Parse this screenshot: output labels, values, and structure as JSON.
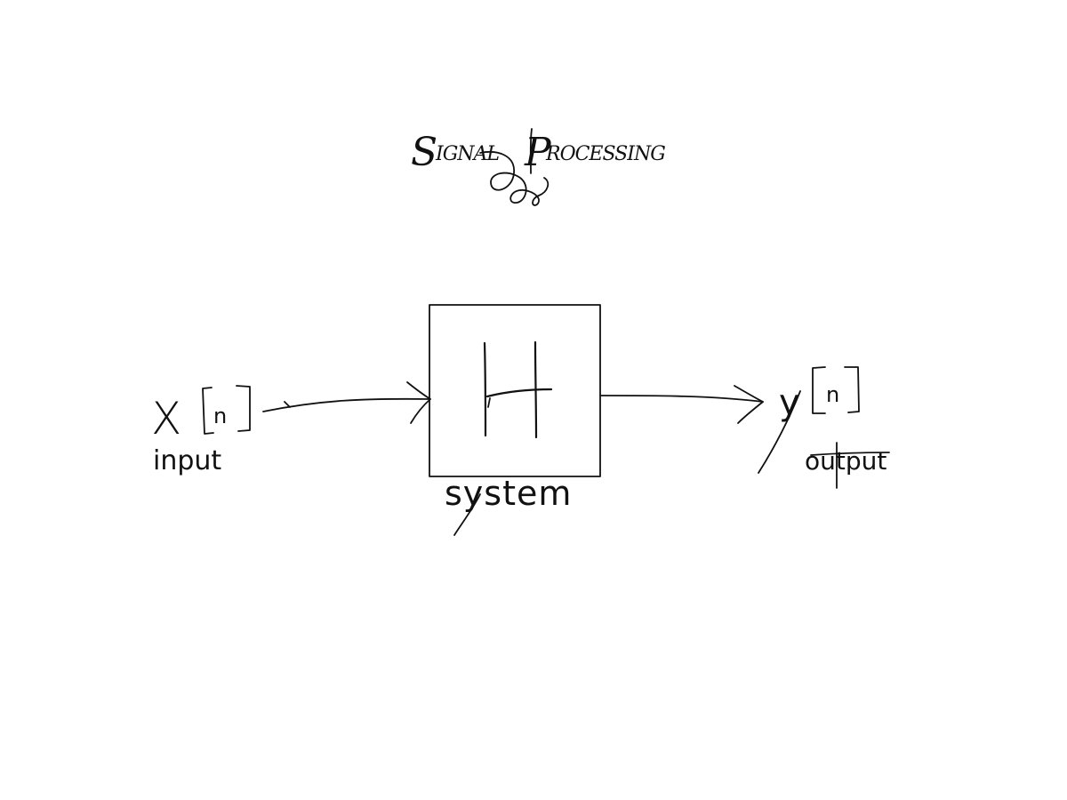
{
  "title": {
    "word1_initial": "S",
    "word1_rest": "IGNAL",
    "word2_initial": "P",
    "word2_rest": "ROCESSING"
  },
  "input": {
    "symbol": "X",
    "index": "n",
    "caption": "input"
  },
  "system": {
    "symbol": "H",
    "caption": "system"
  },
  "output": {
    "symbol": "y",
    "index": "n",
    "caption": "output"
  },
  "colors": {
    "ink": "#111111",
    "background": "#ffffff"
  }
}
